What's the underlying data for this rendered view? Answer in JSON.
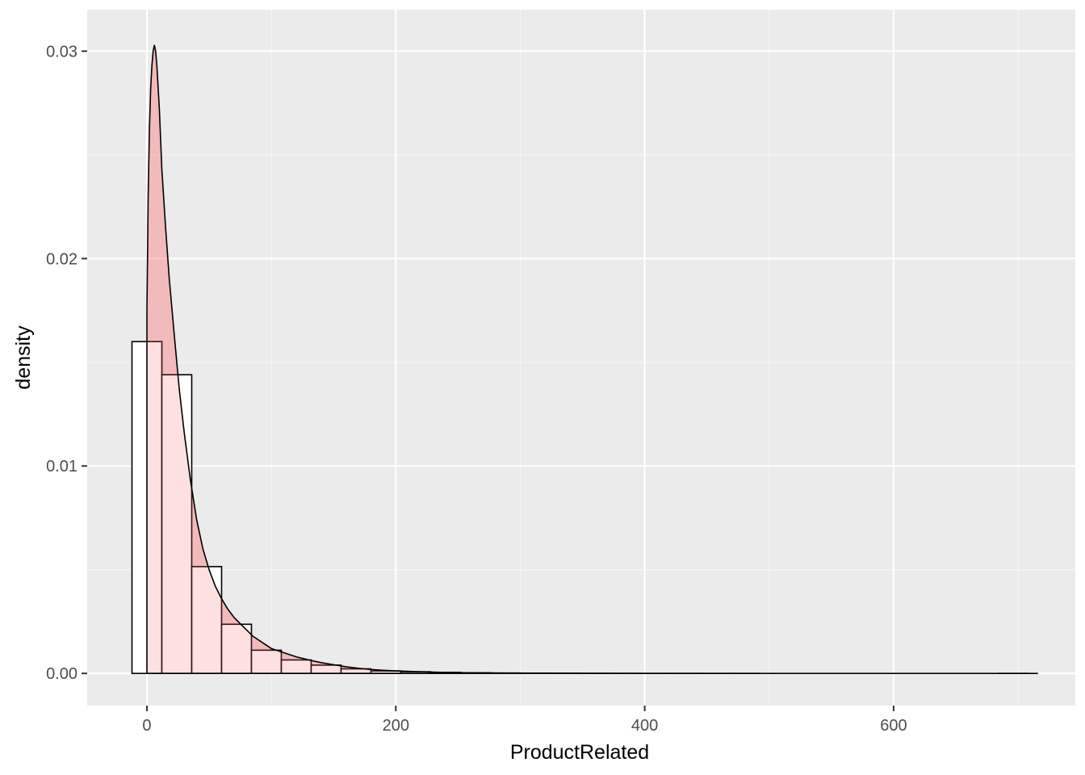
{
  "chart_data": {
    "type": "histogram",
    "title": "",
    "xlabel": "ProductRelated",
    "ylabel": "density",
    "xlim": [
      -48,
      746
    ],
    "ylim": [
      -0.00155,
      0.032
    ],
    "x_ticks": [
      {
        "value": 0,
        "label": "0"
      },
      {
        "value": 200,
        "label": "200"
      },
      {
        "value": 400,
        "label": "400"
      },
      {
        "value": 600,
        "label": "600"
      }
    ],
    "y_ticks": [
      {
        "value": 0,
        "label": "0.00"
      },
      {
        "value": 0.01,
        "label": "0.01"
      },
      {
        "value": 0.02,
        "label": "0.02"
      },
      {
        "value": 0.03,
        "label": "0.03"
      }
    ],
    "histogram": {
      "fill": "#ffffff",
      "outline": "#000000",
      "bins": [
        {
          "x0": -12,
          "x1": 12,
          "density": 0.016
        },
        {
          "x0": 12,
          "x1": 36,
          "density": 0.0144
        },
        {
          "x0": 36,
          "x1": 60,
          "density": 0.00515
        },
        {
          "x0": 60,
          "x1": 84,
          "density": 0.00237
        },
        {
          "x0": 84,
          "x1": 108,
          "density": 0.00112
        },
        {
          "x0": 108,
          "x1": 132,
          "density": 0.00065
        },
        {
          "x0": 132,
          "x1": 156,
          "density": 0.0004
        },
        {
          "x0": 156,
          "x1": 180,
          "density": 0.00022
        },
        {
          "x0": 180,
          "x1": 204,
          "density": 0.00012
        },
        {
          "x0": 204,
          "x1": 228,
          "density": 8e-05
        },
        {
          "x0": 228,
          "x1": 252,
          "density": 5e-05
        },
        {
          "x0": 252,
          "x1": 276,
          "density": 3e-05
        },
        {
          "x0": 276,
          "x1": 300,
          "density": 2e-05
        },
        {
          "x0": 300,
          "x1": 324,
          "density": 1.5e-05
        },
        {
          "x0": 324,
          "x1": 348,
          "density": 1e-05
        },
        {
          "x0": 348,
          "x1": 372,
          "density": 5e-06
        },
        {
          "x0": 372,
          "x1": 396,
          "density": 3e-06
        },
        {
          "x0": 396,
          "x1": 420,
          "density": 2e-06
        },
        {
          "x0": 420,
          "x1": 444,
          "density": 2e-06
        },
        {
          "x0": 444,
          "x1": 468,
          "density": 1e-06
        },
        {
          "x0": 468,
          "x1": 492,
          "density": 1e-06
        },
        {
          "x0": 492,
          "x1": 516,
          "density": 0
        },
        {
          "x0": 516,
          "x1": 540,
          "density": 0
        },
        {
          "x0": 540,
          "x1": 564,
          "density": 0
        },
        {
          "x0": 564,
          "x1": 588,
          "density": 0
        },
        {
          "x0": 588,
          "x1": 612,
          "density": 0
        },
        {
          "x0": 612,
          "x1": 636,
          "density": 0
        },
        {
          "x0": 636,
          "x1": 660,
          "density": 0
        },
        {
          "x0": 660,
          "x1": 684,
          "density": 0
        },
        {
          "x0": 684,
          "x1": 708,
          "density": 1e-06
        }
      ]
    },
    "density_curve": {
      "fill": "#ff6666",
      "fill_opacity": 0.2,
      "line_color": "#000000",
      "points": [
        [
          0,
          0.0175
        ],
        [
          1,
          0.023
        ],
        [
          2,
          0.0262
        ],
        [
          3,
          0.0282
        ],
        [
          4,
          0.0293
        ],
        [
          5,
          0.03
        ],
        [
          6,
          0.0303
        ],
        [
          7,
          0.03
        ],
        [
          8,
          0.0293
        ],
        [
          10,
          0.0272
        ],
        [
          12,
          0.0243
        ],
        [
          15,
          0.0215
        ],
        [
          18,
          0.019
        ],
        [
          22,
          0.0163
        ],
        [
          26,
          0.0137
        ],
        [
          30,
          0.0116
        ],
        [
          35,
          0.0093
        ],
        [
          40,
          0.0074
        ],
        [
          45,
          0.006
        ],
        [
          50,
          0.005
        ],
        [
          55,
          0.0042
        ],
        [
          60,
          0.0036
        ],
        [
          65,
          0.0031
        ],
        [
          70,
          0.0027
        ],
        [
          75,
          0.0024
        ],
        [
          80,
          0.0021
        ],
        [
          85,
          0.0018
        ],
        [
          90,
          0.0016
        ],
        [
          95,
          0.0014
        ],
        [
          100,
          0.0012
        ],
        [
          110,
          0.001
        ],
        [
          120,
          0.0008
        ],
        [
          130,
          0.00065
        ],
        [
          140,
          0.00052
        ],
        [
          150,
          0.00042
        ],
        [
          160,
          0.00032
        ],
        [
          170,
          0.00025
        ],
        [
          180,
          0.00019
        ],
        [
          190,
          0.00015
        ],
        [
          200,
          0.00012
        ],
        [
          220,
          8e-05
        ],
        [
          240,
          5e-05
        ],
        [
          260,
          3e-05
        ],
        [
          280,
          2e-05
        ],
        [
          300,
          1.5e-05
        ],
        [
          330,
          1e-05
        ],
        [
          360,
          5e-06
        ],
        [
          400,
          2e-06
        ],
        [
          450,
          1e-06
        ],
        [
          500,
          0
        ],
        [
          600,
          0
        ],
        [
          700,
          0
        ],
        [
          716,
          0
        ]
      ]
    },
    "colors": {
      "panel_background": "#ebebeb",
      "grid_major": "#ffffff",
      "grid_minor": "#f5f5f5"
    },
    "grid": true,
    "legend": "none"
  }
}
